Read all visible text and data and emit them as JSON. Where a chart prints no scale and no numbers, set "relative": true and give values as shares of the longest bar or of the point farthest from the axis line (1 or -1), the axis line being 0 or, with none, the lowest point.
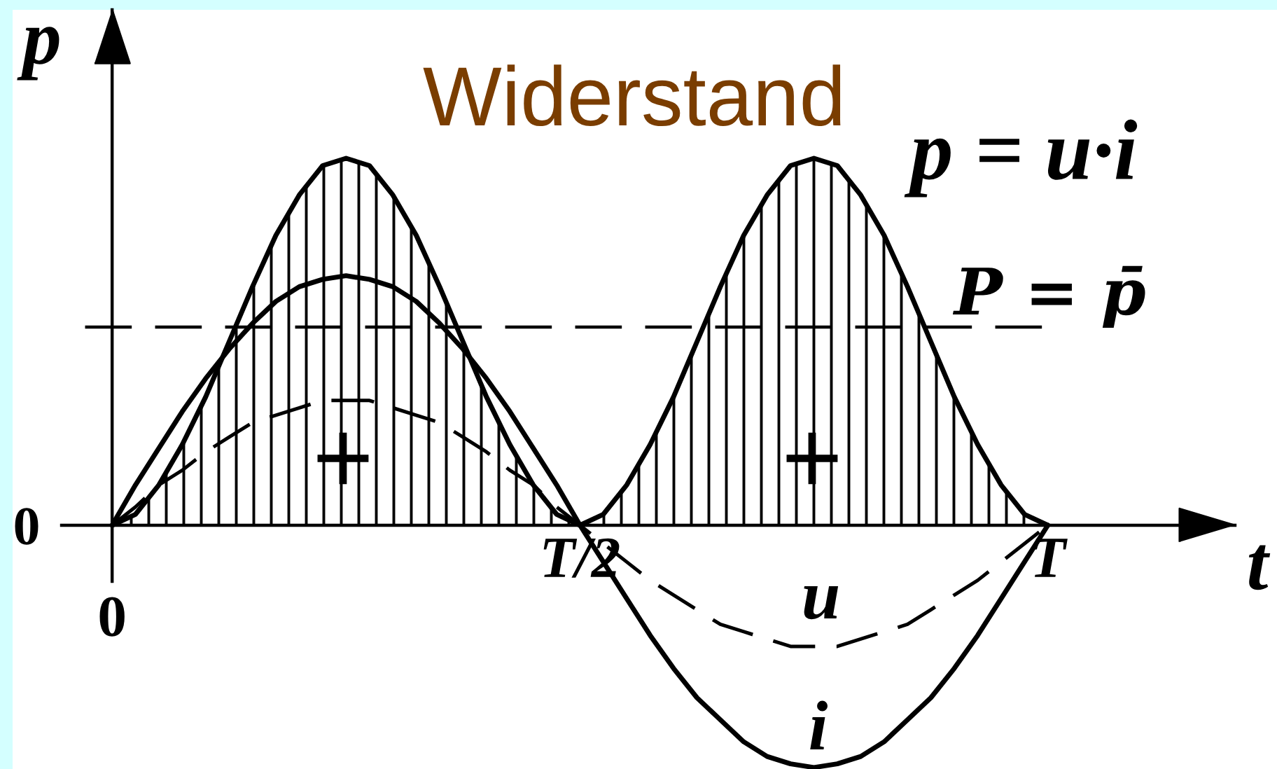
{
  "chart_data": {
    "type": "line",
    "title": "Widerstand",
    "xlabel": "t",
    "ylabel": "p",
    "relative": true,
    "categories": [
      "0",
      null,
      null,
      null,
      null,
      null,
      null,
      null,
      null,
      null,
      null,
      null,
      null,
      null,
      null,
      null,
      null,
      null,
      null,
      null,
      "T/2",
      null,
      null,
      null,
      null,
      null,
      null,
      null,
      null,
      null,
      null,
      null,
      null,
      null,
      null,
      null,
      null,
      null,
      null,
      null,
      "T"
    ],
    "series": [
      {
        "name": "p = u·i",
        "type": "area",
        "color": "#000000",
        "values": [
          0,
          0.03,
          0.11,
          0.22,
          0.35,
          0.5,
          0.65,
          0.79,
          0.9,
          0.98,
          1.0,
          0.98,
          0.9,
          0.79,
          0.65,
          0.5,
          0.35,
          0.22,
          0.11,
          0.03,
          0,
          0.03,
          0.11,
          0.22,
          0.35,
          0.5,
          0.65,
          0.79,
          0.9,
          0.98,
          1.0,
          0.98,
          0.9,
          0.79,
          0.65,
          0.5,
          0.35,
          0.22,
          0.11,
          0.03,
          0
        ]
      },
      {
        "name": "i",
        "color": "#000000",
        "values": [
          0,
          0.11,
          0.21,
          0.31,
          0.4,
          0.48,
          0.55,
          0.61,
          0.65,
          0.67,
          0.68,
          0.67,
          0.65,
          0.61,
          0.55,
          0.48,
          0.4,
          0.31,
          0.21,
          0.11,
          0,
          -0.1,
          -0.2,
          -0.3,
          -0.39,
          -0.47,
          -0.53,
          -0.59,
          -0.63,
          -0.65,
          -0.66,
          -0.65,
          -0.63,
          -0.59,
          -0.53,
          -0.47,
          -0.39,
          -0.3,
          -0.2,
          -0.1,
          0
        ]
      },
      {
        "name": "u",
        "line_style": "dashed",
        "color": "#000000",
        "values": [
          0,
          0.05,
          0.11,
          0.15,
          0.2,
          0.24,
          0.28,
          0.3,
          0.32,
          0.34,
          0.34,
          0.34,
          0.32,
          0.3,
          0.28,
          0.24,
          0.2,
          0.15,
          0.11,
          0.05,
          0,
          -0.05,
          -0.1,
          -0.15,
          -0.19,
          -0.23,
          -0.27,
          -0.29,
          -0.31,
          -0.33,
          -0.33,
          -0.33,
          -0.31,
          -0.29,
          -0.27,
          -0.23,
          -0.19,
          -0.15,
          -0.1,
          -0.05,
          0
        ]
      }
    ],
    "ref_lines": [
      {
        "axis": "y",
        "value": 0.54,
        "label": "P = p̄",
        "line_style": "dashed",
        "color": "#000000"
      }
    ],
    "annotations": [
      "+",
      "+",
      "0"
    ]
  }
}
